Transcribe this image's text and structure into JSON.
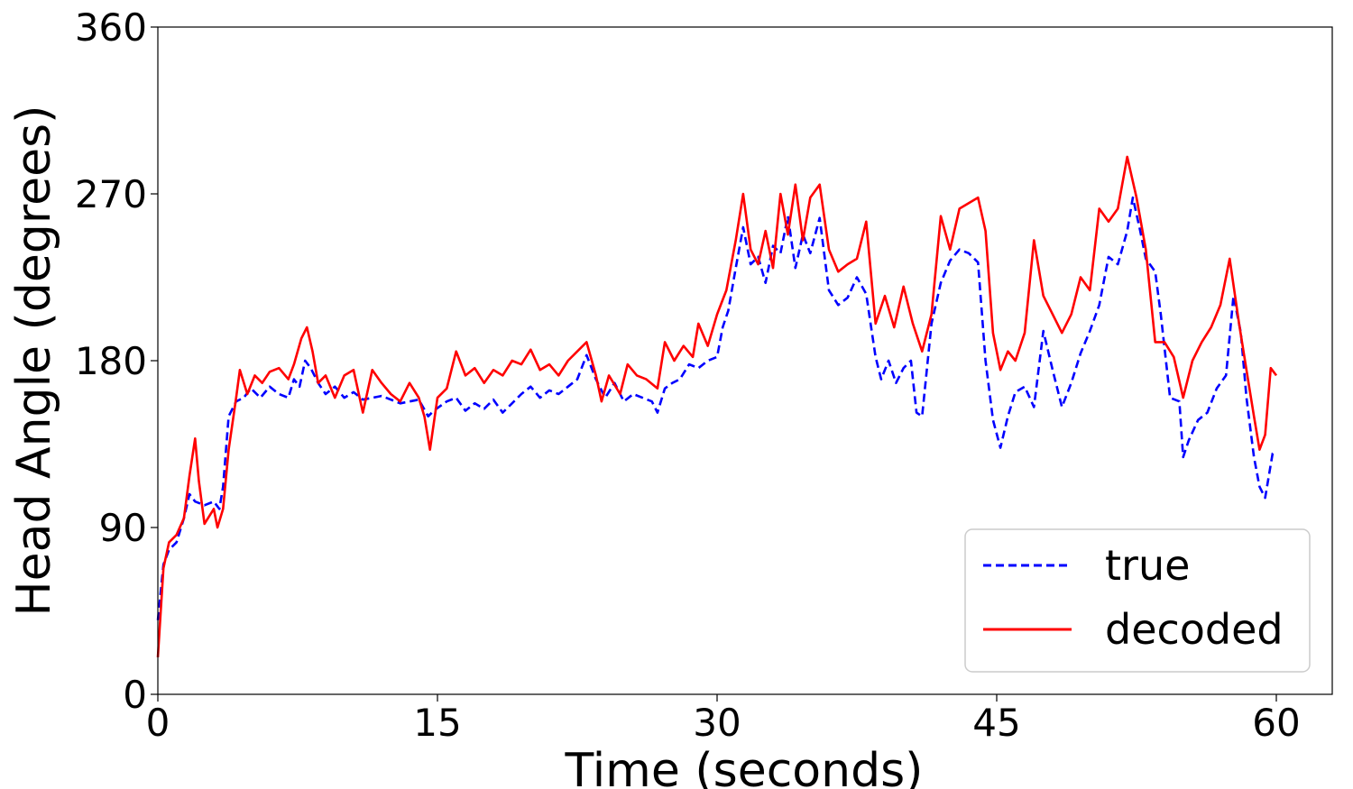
{
  "chart_data": {
    "type": "line",
    "xlabel": "Time (seconds)",
    "ylabel": "Head Angle (degrees)",
    "xlim": [
      0,
      63
    ],
    "ylim": [
      0,
      360
    ],
    "xticks": [
      0,
      15,
      30,
      45,
      60
    ],
    "yticks": [
      0,
      90,
      180,
      270,
      360
    ],
    "x_tick_labels": [
      "0",
      "15",
      "30",
      "45",
      "60"
    ],
    "y_tick_labels": [
      "0",
      "90",
      "180",
      "270",
      "360"
    ],
    "grid": false,
    "legend_position": "bottom-right",
    "series": [
      {
        "name": "true",
        "color": "#0000ff",
        "style": "dashed",
        "points": [
          [
            0,
            40
          ],
          [
            0.3,
            70
          ],
          [
            0.6,
            78
          ],
          [
            1.0,
            82
          ],
          [
            1.4,
            95
          ],
          [
            1.7,
            108
          ],
          [
            2.0,
            104
          ],
          [
            2.5,
            102
          ],
          [
            3.0,
            104
          ],
          [
            3.3,
            100
          ],
          [
            3.5,
            112
          ],
          [
            3.8,
            150
          ],
          [
            4.2,
            158
          ],
          [
            4.6,
            160
          ],
          [
            5.0,
            165
          ],
          [
            5.5,
            160
          ],
          [
            6.0,
            166
          ],
          [
            6.5,
            162
          ],
          [
            7.0,
            160
          ],
          [
            7.3,
            170
          ],
          [
            7.6,
            166
          ],
          [
            7.9,
            180
          ],
          [
            8.2,
            176
          ],
          [
            8.6,
            168
          ],
          [
            9.0,
            162
          ],
          [
            9.5,
            166
          ],
          [
            10.0,
            160
          ],
          [
            10.5,
            163
          ],
          [
            11.0,
            159
          ],
          [
            12.0,
            161
          ],
          [
            13.0,
            157
          ],
          [
            14.0,
            159
          ],
          [
            14.5,
            150
          ],
          [
            14.8,
            153
          ],
          [
            15.5,
            158
          ],
          [
            16.0,
            160
          ],
          [
            16.5,
            153
          ],
          [
            17.0,
            157
          ],
          [
            17.5,
            154
          ],
          [
            18.0,
            159
          ],
          [
            18.5,
            152
          ],
          [
            19.0,
            157
          ],
          [
            19.5,
            162
          ],
          [
            20.0,
            166
          ],
          [
            20.5,
            160
          ],
          [
            21.0,
            164
          ],
          [
            21.5,
            162
          ],
          [
            22.0,
            166
          ],
          [
            22.5,
            170
          ],
          [
            23.0,
            183
          ],
          [
            23.5,
            170
          ],
          [
            24.0,
            160
          ],
          [
            24.5,
            168
          ],
          [
            25.0,
            158
          ],
          [
            25.5,
            162
          ],
          [
            26.0,
            160
          ],
          [
            26.5,
            158
          ],
          [
            26.8,
            152
          ],
          [
            27.2,
            165
          ],
          [
            27.6,
            168
          ],
          [
            28.0,
            170
          ],
          [
            28.5,
            178
          ],
          [
            29.0,
            176
          ],
          [
            29.5,
            180
          ],
          [
            30.0,
            182
          ],
          [
            30.3,
            198
          ],
          [
            30.6,
            207
          ],
          [
            31.0,
            230
          ],
          [
            31.4,
            252
          ],
          [
            31.8,
            232
          ],
          [
            32.2,
            236
          ],
          [
            32.6,
            222
          ],
          [
            33.0,
            242
          ],
          [
            33.4,
            238
          ],
          [
            33.8,
            258
          ],
          [
            34.2,
            230
          ],
          [
            34.6,
            248
          ],
          [
            35.0,
            238
          ],
          [
            35.5,
            257
          ],
          [
            36.0,
            218
          ],
          [
            36.5,
            210
          ],
          [
            37.0,
            214
          ],
          [
            37.5,
            225
          ],
          [
            38.0,
            216
          ],
          [
            38.5,
            182
          ],
          [
            38.8,
            170
          ],
          [
            39.2,
            180
          ],
          [
            39.6,
            168
          ],
          [
            40.0,
            176
          ],
          [
            40.4,
            180
          ],
          [
            40.7,
            152
          ],
          [
            41.0,
            150
          ],
          [
            41.5,
            200
          ],
          [
            42.0,
            222
          ],
          [
            42.5,
            234
          ],
          [
            43.0,
            240
          ],
          [
            43.5,
            238
          ],
          [
            44.0,
            233
          ],
          [
            44.4,
            180
          ],
          [
            44.8,
            148
          ],
          [
            45.2,
            133
          ],
          [
            45.6,
            150
          ],
          [
            46.0,
            163
          ],
          [
            46.5,
            166
          ],
          [
            47.0,
            155
          ],
          [
            47.5,
            196
          ],
          [
            48.0,
            175
          ],
          [
            48.5,
            155
          ],
          [
            49.0,
            168
          ],
          [
            49.5,
            184
          ],
          [
            50.0,
            196
          ],
          [
            50.5,
            210
          ],
          [
            51.0,
            236
          ],
          [
            51.5,
            232
          ],
          [
            52.0,
            250
          ],
          [
            52.3,
            268
          ],
          [
            52.7,
            250
          ],
          [
            53.0,
            235
          ],
          [
            53.5,
            228
          ],
          [
            53.8,
            205
          ],
          [
            54.3,
            160
          ],
          [
            54.8,
            158
          ],
          [
            55.0,
            128
          ],
          [
            55.3,
            137
          ],
          [
            55.8,
            148
          ],
          [
            56.3,
            152
          ],
          [
            56.8,
            165
          ],
          [
            57.3,
            172
          ],
          [
            57.7,
            215
          ],
          [
            58.1,
            195
          ],
          [
            58.4,
            160
          ],
          [
            58.8,
            128
          ],
          [
            59.1,
            112
          ],
          [
            59.4,
            106
          ],
          [
            59.8,
            130
          ],
          [
            60.0,
            131
          ]
        ]
      },
      {
        "name": "decoded",
        "color": "#ff0000",
        "style": "solid",
        "points": [
          [
            0,
            20
          ],
          [
            0.3,
            68
          ],
          [
            0.6,
            82
          ],
          [
            1.0,
            86
          ],
          [
            1.4,
            95
          ],
          [
            1.7,
            118
          ],
          [
            2.0,
            138
          ],
          [
            2.2,
            115
          ],
          [
            2.5,
            92
          ],
          [
            3.0,
            100
          ],
          [
            3.2,
            90
          ],
          [
            3.5,
            100
          ],
          [
            3.8,
            132
          ],
          [
            4.2,
            160
          ],
          [
            4.4,
            175
          ],
          [
            4.8,
            162
          ],
          [
            5.2,
            172
          ],
          [
            5.6,
            168
          ],
          [
            6.0,
            174
          ],
          [
            6.5,
            176
          ],
          [
            7.0,
            170
          ],
          [
            7.3,
            178
          ],
          [
            7.7,
            192
          ],
          [
            8.0,
            198
          ],
          [
            8.3,
            185
          ],
          [
            8.6,
            168
          ],
          [
            9.0,
            172
          ],
          [
            9.5,
            160
          ],
          [
            10.0,
            172
          ],
          [
            10.5,
            175
          ],
          [
            11.0,
            152
          ],
          [
            11.5,
            175
          ],
          [
            12.0,
            168
          ],
          [
            12.5,
            162
          ],
          [
            13.0,
            158
          ],
          [
            13.5,
            168
          ],
          [
            14.0,
            160
          ],
          [
            14.3,
            150
          ],
          [
            14.6,
            132
          ],
          [
            15.0,
            160
          ],
          [
            15.5,
            165
          ],
          [
            16.0,
            185
          ],
          [
            16.5,
            172
          ],
          [
            17.0,
            176
          ],
          [
            17.5,
            168
          ],
          [
            18.0,
            175
          ],
          [
            18.5,
            172
          ],
          [
            19.0,
            180
          ],
          [
            19.5,
            178
          ],
          [
            20.0,
            186
          ],
          [
            20.5,
            175
          ],
          [
            21.0,
            178
          ],
          [
            21.5,
            172
          ],
          [
            22.0,
            180
          ],
          [
            22.5,
            185
          ],
          [
            23.0,
            190
          ],
          [
            23.5,
            172
          ],
          [
            23.8,
            158
          ],
          [
            24.2,
            172
          ],
          [
            24.8,
            162
          ],
          [
            25.2,
            178
          ],
          [
            25.7,
            172
          ],
          [
            26.2,
            170
          ],
          [
            26.8,
            165
          ],
          [
            27.2,
            190
          ],
          [
            27.7,
            180
          ],
          [
            28.2,
            188
          ],
          [
            28.7,
            182
          ],
          [
            29.0,
            200
          ],
          [
            29.5,
            188
          ],
          [
            30.0,
            205
          ],
          [
            30.5,
            218
          ],
          [
            31.0,
            245
          ],
          [
            31.4,
            270
          ],
          [
            31.8,
            240
          ],
          [
            32.2,
            232
          ],
          [
            32.6,
            250
          ],
          [
            33.0,
            230
          ],
          [
            33.4,
            270
          ],
          [
            33.8,
            248
          ],
          [
            34.2,
            275
          ],
          [
            34.6,
            245
          ],
          [
            35.0,
            268
          ],
          [
            35.5,
            275
          ],
          [
            36.0,
            240
          ],
          [
            36.5,
            228
          ],
          [
            37.0,
            232
          ],
          [
            37.5,
            235
          ],
          [
            38.0,
            255
          ],
          [
            38.5,
            200
          ],
          [
            39.0,
            215
          ],
          [
            39.5,
            198
          ],
          [
            40.0,
            220
          ],
          [
            40.5,
            200
          ],
          [
            41.0,
            185
          ],
          [
            41.5,
            205
          ],
          [
            42.0,
            258
          ],
          [
            42.5,
            240
          ],
          [
            43.0,
            262
          ],
          [
            43.5,
            265
          ],
          [
            44.0,
            268
          ],
          [
            44.4,
            250
          ],
          [
            44.8,
            195
          ],
          [
            45.2,
            175
          ],
          [
            45.6,
            185
          ],
          [
            46.0,
            180
          ],
          [
            46.5,
            195
          ],
          [
            47.0,
            245
          ],
          [
            47.5,
            215
          ],
          [
            48.0,
            205
          ],
          [
            48.5,
            195
          ],
          [
            49.0,
            205
          ],
          [
            49.5,
            225
          ],
          [
            50.0,
            218
          ],
          [
            50.5,
            262
          ],
          [
            51.0,
            255
          ],
          [
            51.5,
            262
          ],
          [
            52.0,
            290
          ],
          [
            52.5,
            268
          ],
          [
            53.0,
            240
          ],
          [
            53.5,
            190
          ],
          [
            54.0,
            190
          ],
          [
            54.5,
            182
          ],
          [
            55.0,
            160
          ],
          [
            55.5,
            180
          ],
          [
            56.0,
            190
          ],
          [
            56.5,
            198
          ],
          [
            57.0,
            210
          ],
          [
            57.5,
            235
          ],
          [
            58.0,
            200
          ],
          [
            58.4,
            175
          ],
          [
            58.8,
            150
          ],
          [
            59.1,
            132
          ],
          [
            59.4,
            140
          ],
          [
            59.7,
            176
          ],
          [
            60.0,
            172
          ]
        ]
      }
    ]
  }
}
